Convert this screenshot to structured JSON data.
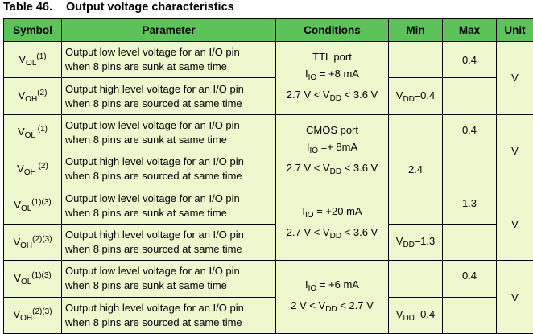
{
  "caption": {
    "number": "Table 46.",
    "title": "Output voltage characteristics"
  },
  "headers": {
    "symbol": "Symbol",
    "parameter": "Parameter",
    "conditions": "Conditions",
    "min": "Min",
    "max": "Max",
    "unit": "Unit"
  },
  "rows": [
    {
      "sym_base": "V",
      "sym_sub": "OL",
      "sym_sup": "(1)",
      "param_line1": "Output low level voltage for an I/O pin",
      "param_line2": "when 8 pins are sunk at same time",
      "min": "",
      "min_sub": "",
      "min_tail": "",
      "max": "0.4"
    },
    {
      "sym_base": "V",
      "sym_sub": "OH",
      "sym_sup": "(2)",
      "param_line1": "Output high level voltage for an I/O pin",
      "param_line2": "when 8 pins are sourced at same time",
      "min": "V",
      "min_sub": "DD",
      "min_tail": "–0.4",
      "max": ""
    },
    {
      "sym_base": "V",
      "sym_sub": "OL",
      "sym_sup": " (1)",
      "param_line1": "Output low level voltage for an I/O pin",
      "param_line2": "when 8 pins are sunk at same time",
      "min": "",
      "min_sub": "",
      "min_tail": "",
      "max": "0.4"
    },
    {
      "sym_base": "V",
      "sym_sub": "OH",
      "sym_sup": " (2)",
      "param_line1": "Output high level voltage for an I/O pin",
      "param_line2": "when 8 pins are sourced at same time",
      "min": "2.4",
      "min_sub": "",
      "min_tail": "",
      "max": ""
    },
    {
      "sym_base": "V",
      "sym_sub": "OL",
      "sym_sup": "(1)(3)",
      "param_line1": "Output low level voltage for an I/O pin",
      "param_line2": "when 8 pins are sunk at same time",
      "min": "",
      "min_sub": "",
      "min_tail": "",
      "max": "1.3"
    },
    {
      "sym_base": "V",
      "sym_sub": "OH",
      "sym_sup": "(2)(3)",
      "param_line1": "Output high level voltage for an I/O pin",
      "param_line2": "when 8 pins are sourced at same time",
      "min": "V",
      "min_sub": "DD",
      "min_tail": "–1.3",
      "max": ""
    },
    {
      "sym_base": "V",
      "sym_sub": "OL",
      "sym_sup": "(1)(3)",
      "param_line1": "Output low level voltage for an I/O pin",
      "param_line2": "when 8 pins are sunk at same time",
      "min": "",
      "min_sub": "",
      "min_tail": "",
      "max": "0.4"
    },
    {
      "sym_base": "V",
      "sym_sub": "OH",
      "sym_sup": "(2)(3)",
      "param_line1": "Output high level voltage for an I/O pin",
      "param_line2": "when 8 pins are sourced at same time",
      "min": "V",
      "min_sub": "DD",
      "min_tail": "–0.4",
      "max": ""
    }
  ],
  "groups": [
    {
      "cond_line1": "TTL port",
      "io_pre": "I",
      "io_sub": "IO",
      "io_post": " = +8 mA",
      "range_pre": "2.7 V < V",
      "range_sub": "DD",
      "range_post": " < 3.6 V",
      "unit": "V"
    },
    {
      "cond_line1": "CMOS port",
      "io_pre": "I",
      "io_sub": "IO",
      "io_post": " =+ 8mA",
      "range_pre": "2.7 V < V",
      "range_sub": "DD",
      "range_post": " < 3.6 V",
      "unit": "V"
    },
    {
      "cond_line1": "",
      "io_pre": "I",
      "io_sub": "IO",
      "io_post": " = +20 mA",
      "range_pre": "2.7 V < V",
      "range_sub": "DD",
      "range_post": " < 3.6 V",
      "unit": "V"
    },
    {
      "cond_line1": "",
      "io_pre": "I",
      "io_sub": "IO",
      "io_post": " = +6 mA",
      "range_pre": "2 V < V",
      "range_sub": "DD",
      "range_post": " < 2.7 V",
      "unit": "V"
    }
  ]
}
